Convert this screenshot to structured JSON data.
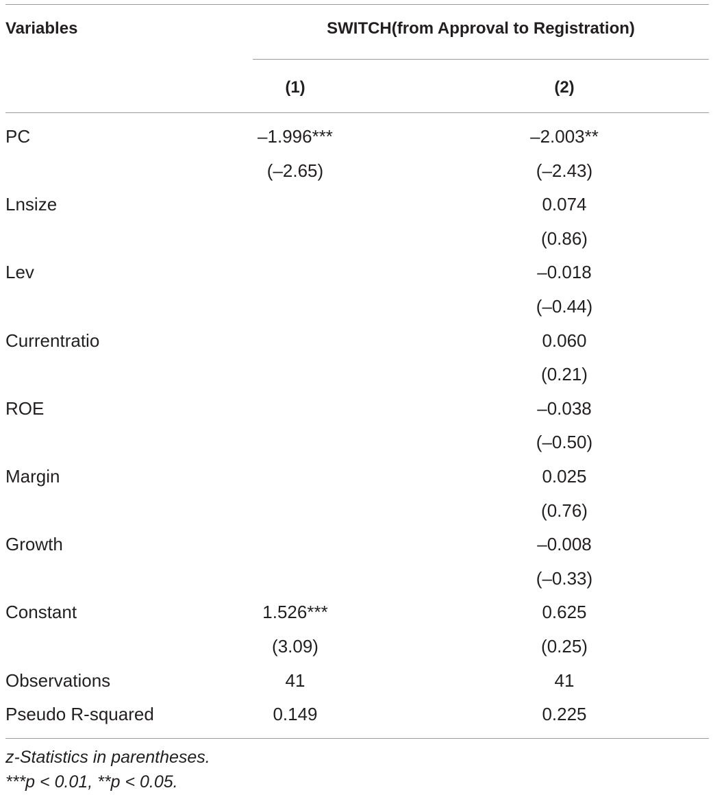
{
  "table": {
    "header": {
      "variables_label": "Variables",
      "group_label": "SWITCH(from Approval to Registration)",
      "col1_label": "(1)",
      "col2_label": "(2)"
    },
    "rows": [
      {
        "variable": "PC",
        "col1": "–1.996***",
        "col2": "–2.003**"
      },
      {
        "variable": "",
        "col1": "(–2.65)",
        "col2": "(–2.43)"
      },
      {
        "variable": "Lnsize",
        "col1": "",
        "col2": "0.074"
      },
      {
        "variable": "",
        "col1": "",
        "col2": "(0.86)"
      },
      {
        "variable": "Lev",
        "col1": "",
        "col2": "–0.018"
      },
      {
        "variable": "",
        "col1": "",
        "col2": "(–0.44)"
      },
      {
        "variable": "Currentratio",
        "col1": "",
        "col2": "0.060"
      },
      {
        "variable": "",
        "col1": "",
        "col2": "(0.21)"
      },
      {
        "variable": "ROE",
        "col1": "",
        "col2": "–0.038"
      },
      {
        "variable": "",
        "col1": "",
        "col2": "(–0.50)"
      },
      {
        "variable": "Margin",
        "col1": "",
        "col2": "0.025"
      },
      {
        "variable": "",
        "col1": "",
        "col2": "(0.76)"
      },
      {
        "variable": "Growth",
        "col1": "",
        "col2": "–0.008"
      },
      {
        "variable": "",
        "col1": "",
        "col2": "(–0.33)"
      },
      {
        "variable": "Constant",
        "col1": "1.526***",
        "col2": "0.625"
      },
      {
        "variable": "",
        "col1": "(3.09)",
        "col2": "(0.25)"
      },
      {
        "variable": "Observations",
        "col1": "41",
        "col2": "41"
      },
      {
        "variable": "Pseudo R-squared",
        "col1": "0.149",
        "col2": "0.225"
      }
    ],
    "notes": [
      "z-Statistics in parentheses.",
      "***p < 0.01, **p < 0.05."
    ]
  }
}
